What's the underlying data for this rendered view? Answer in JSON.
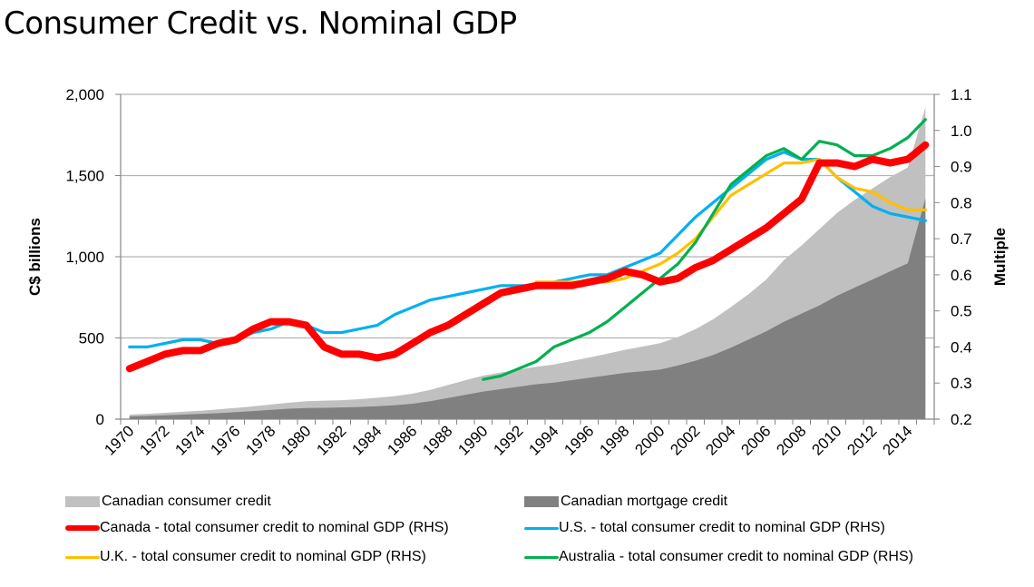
{
  "title": "Consumer Credit vs. Nominal GDP",
  "chart_data": {
    "type": "area",
    "title": "Consumer Credit vs. Nominal GDP",
    "xlabel": "",
    "ylabel": "C$ billions",
    "y2label": "Multiple",
    "ylim": [
      0,
      2000
    ],
    "y2lim": [
      0.2,
      1.1
    ],
    "yticks": [
      "0",
      "500",
      "1,000",
      "1,500",
      "2,000"
    ],
    "yticks_values": [
      0,
      500,
      1000,
      1500,
      2000
    ],
    "y2ticks": [
      "0.2",
      "0.3",
      "0.4",
      "0.5",
      "0.6",
      "0.7",
      "0.8",
      "0.9",
      "1.0",
      "1.1"
    ],
    "y2ticks_values": [
      0.2,
      0.3,
      0.4,
      0.5,
      0.6,
      0.7,
      0.8,
      0.9,
      1.0,
      1.1
    ],
    "x": [
      1970,
      1971,
      1972,
      1973,
      1974,
      1975,
      1976,
      1977,
      1978,
      1979,
      1980,
      1981,
      1982,
      1983,
      1984,
      1985,
      1986,
      1987,
      1988,
      1989,
      1990,
      1991,
      1992,
      1993,
      1994,
      1995,
      1996,
      1997,
      1998,
      1999,
      2000,
      2001,
      2002,
      2003,
      2004,
      2005,
      2006,
      2007,
      2008,
      2009,
      2010,
      2011,
      2012,
      2013,
      2014,
      2015
    ],
    "xtick_labels": [
      "1970",
      "1972",
      "1974",
      "1976",
      "1978",
      "1980",
      "1982",
      "1984",
      "1986",
      "1988",
      "1990",
      "1992",
      "1994",
      "1996",
      "1998",
      "2000",
      "2002",
      "2004",
      "2006",
      "2008",
      "2010",
      "2012",
      "2014"
    ],
    "grid": true,
    "legend_position": "bottom",
    "series": [
      {
        "name": "Canadian consumer credit",
        "kind": "area",
        "axis": "left",
        "stacked_on": "Canadian mortgage credit",
        "color": "#c0c0c0",
        "values": [
          11,
          13,
          15,
          17,
          20,
          23,
          26,
          29,
          33,
          37,
          42,
          44,
          45,
          48,
          52,
          56,
          62,
          70,
          80,
          90,
          98,
          102,
          105,
          108,
          112,
          118,
          125,
          133,
          142,
          152,
          163,
          175,
          195,
          220,
          250,
          280,
          320,
          380,
          420,
          470,
          510,
          540,
          560,
          580,
          590,
          560
        ]
      },
      {
        "name": "Canadian mortgage credit",
        "kind": "area",
        "axis": "left",
        "color": "#808080",
        "values": [
          17,
          20,
          24,
          28,
          32,
          37,
          43,
          50,
          57,
          64,
          68,
          70,
          72,
          75,
          80,
          86,
          95,
          110,
          130,
          150,
          170,
          185,
          200,
          215,
          225,
          240,
          255,
          270,
          285,
          295,
          305,
          330,
          360,
          395,
          440,
          490,
          540,
          600,
          650,
          700,
          760,
          810,
          860,
          910,
          960,
          1360
        ]
      },
      {
        "name": "Canada - total consumer credit to nominal GDP (RHS)",
        "kind": "line",
        "axis": "right",
        "color": "#ff0000",
        "x_start": 1970,
        "values": [
          0.34,
          0.36,
          0.38,
          0.39,
          0.39,
          0.41,
          0.42,
          0.45,
          0.47,
          0.47,
          0.46,
          0.4,
          0.38,
          0.38,
          0.37,
          0.38,
          0.41,
          0.44,
          0.46,
          0.49,
          0.52,
          0.55,
          0.56,
          0.57,
          0.57,
          0.57,
          0.58,
          0.59,
          0.61,
          0.6,
          0.58,
          0.59,
          0.62,
          0.64,
          0.67,
          0.7,
          0.73,
          0.77,
          0.81,
          0.91,
          0.91,
          0.9,
          0.92,
          0.91,
          0.92,
          0.96
        ]
      },
      {
        "name": "U.S. - total consumer credit to nominal GDP (RHS)",
        "kind": "line",
        "axis": "right",
        "color": "#00b0f0",
        "x_start": 1970,
        "values": [
          0.4,
          0.4,
          0.41,
          0.42,
          0.42,
          0.41,
          0.42,
          0.44,
          0.45,
          0.47,
          0.46,
          0.44,
          0.44,
          0.45,
          0.46,
          0.49,
          0.51,
          0.53,
          0.54,
          0.55,
          0.56,
          0.57,
          0.57,
          0.57,
          0.58,
          0.59,
          0.6,
          0.6,
          0.62,
          0.64,
          0.66,
          0.71,
          0.76,
          0.8,
          0.84,
          0.88,
          0.92,
          0.94,
          0.92,
          0.92,
          0.87,
          0.83,
          0.79,
          0.77,
          0.76,
          0.75
        ]
      },
      {
        "name": "U.K. - total consumer credit to nominal GDP (RHS)",
        "kind": "line",
        "axis": "right",
        "color": "#ffc000",
        "x_start": 1993,
        "values": [
          0.58,
          0.58,
          0.58,
          0.58,
          0.58,
          0.59,
          0.61,
          0.63,
          0.66,
          0.7,
          0.76,
          0.82,
          0.85,
          0.88,
          0.91,
          0.91,
          0.92,
          0.87,
          0.84,
          0.83,
          0.8,
          0.78,
          0.78
        ]
      },
      {
        "name": "Australia - total consumer credit to nominal GDP (RHS)",
        "kind": "line",
        "axis": "right",
        "color": "#00b050",
        "x_start": 1990,
        "values": [
          0.31,
          0.32,
          0.34,
          0.36,
          0.4,
          0.42,
          0.44,
          0.47,
          0.51,
          0.55,
          0.59,
          0.63,
          0.69,
          0.77,
          0.85,
          0.89,
          0.93,
          0.95,
          0.92,
          0.97,
          0.96,
          0.93,
          0.93,
          0.95,
          0.98,
          1.03
        ]
      }
    ]
  },
  "legend": [
    {
      "label": "Canadian consumer credit",
      "type": "area",
      "color": "#c0c0c0"
    },
    {
      "label": "Canadian mortgage credit",
      "type": "area",
      "color": "#808080"
    },
    {
      "label": "Canada - total consumer credit to nominal GDP (RHS)",
      "type": "line",
      "color": "#ff0000"
    },
    {
      "label": "U.S. - total consumer credit to nominal GDP (RHS)",
      "type": "line",
      "color": "#00b0f0"
    },
    {
      "label": "U.K. - total consumer credit to nominal GDP (RHS)",
      "type": "line",
      "color": "#ffc000"
    },
    {
      "label": "Australia - total consumer credit to nominal GDP (RHS)",
      "type": "line",
      "color": "#00b050"
    }
  ]
}
